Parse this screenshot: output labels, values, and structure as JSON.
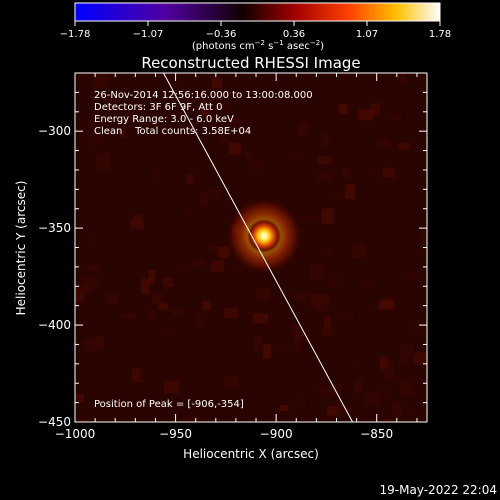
{
  "colorbar": {
    "ticks": [
      "−1.78",
      "−1.07",
      "−0.36",
      "0.36",
      "1.07",
      "1.78"
    ],
    "units_main": "(photons cm",
    "units_exp1": "−2",
    "units_mid": " s",
    "units_exp2": "−1",
    "units_mid2": " asec",
    "units_exp3": "−2",
    "units_end": ")"
  },
  "chart_data": {
    "type": "heatmap",
    "title": "Reconstructed RHESSI Image",
    "xlabel": "Heliocentric X (arcsec)",
    "ylabel": "Heliocentric Y (arcsec)",
    "xlim": [
      -1000,
      -825
    ],
    "ylim": [
      -450,
      -270
    ],
    "xticks": [
      -1000,
      -950,
      -900,
      -850
    ],
    "yticks": [
      -300,
      -350,
      -400,
      -450
    ],
    "xtick_labels": [
      "−1000",
      "−950",
      "−900",
      "−850"
    ],
    "ytick_labels": [
      "−300",
      "−350",
      "−400",
      "−450"
    ],
    "colorscale": [
      "#0000ff",
      "#4000a0",
      "#000000",
      "#800000",
      "#ff4000",
      "#ffd000",
      "#ffffff"
    ],
    "peak": {
      "x": -906,
      "y": -354
    },
    "limb_line": [
      [
        -956,
        -270
      ],
      [
        -862,
        -450
      ]
    ],
    "annotations": [
      "26-Nov-2014 12:56:16.000 to 13:00:08.000",
      "Detectors: 3F 6F 9F, Att 0",
      "Energy Range: 3.0 - 6.0 keV",
      "Clean    Total counts: 3.58E+04"
    ],
    "peak_label": "Position of Peak = [-906,-354]"
  },
  "footer": {
    "timestamp": "19-May-2022 22:04"
  }
}
